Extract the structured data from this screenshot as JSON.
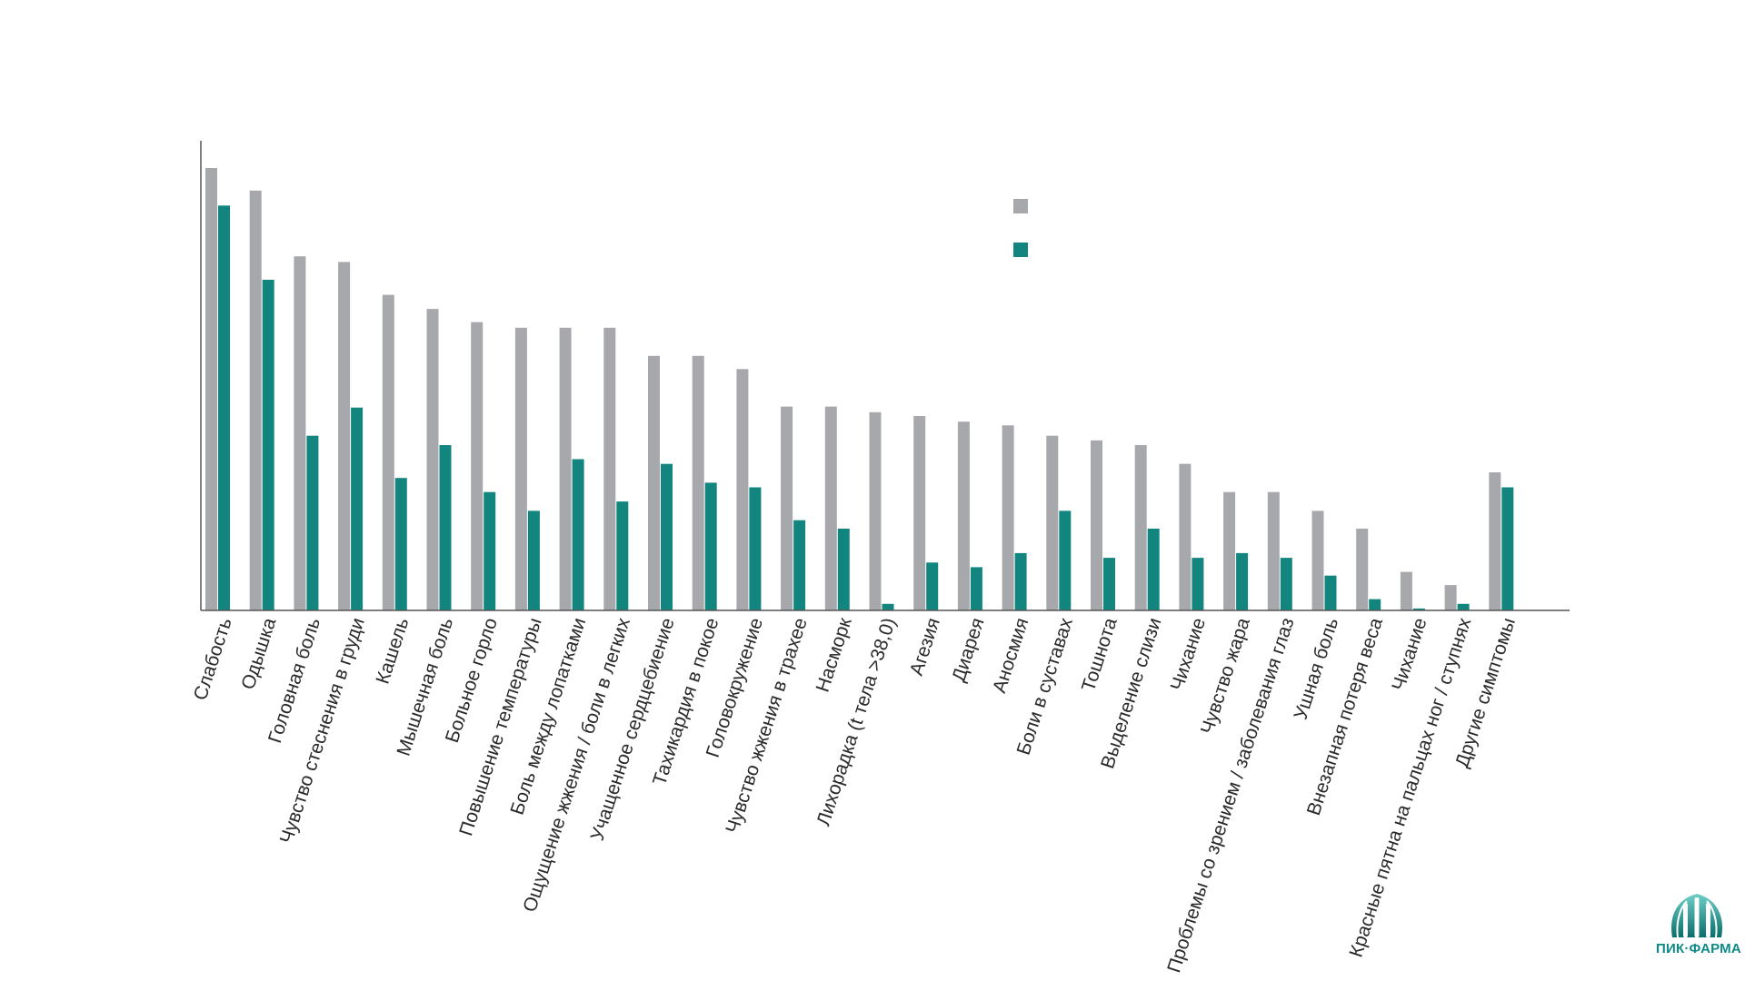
{
  "chart_data": {
    "type": "bar",
    "categories": [
      "Слабость",
      "Одышка",
      "Головная боль",
      "Чувство стеснения в груди",
      "Кашель",
      "Мышечная боль",
      "Больное горло",
      "Повышение температуры",
      "Боль между лопатками",
      "Ощущение жжения / боли в легких",
      "Учащенное сердцебиение",
      "Тахикардия в покое",
      "Головокружение",
      "Чувство жжения в трахее",
      "Насморк",
      "Лихорадка (t тела >38,0)",
      "Агезия",
      "Диарея",
      "Аносмия",
      "Боли в суставах",
      "Тошнота",
      "Выделение слизи",
      "Чихание",
      "Чувство жара",
      "Проблемы со зрением / заболевания глаз",
      "Ушная боль",
      "Внезапная потеря веса",
      "Чихание",
      "Красные пятна на пальцах ног / ступнях",
      "Другие симптомы"
    ],
    "series": [
      {
        "color": "#a7a8ac",
        "values": [
          94.2,
          89.4,
          75.4,
          74.2,
          67.2,
          64.2,
          61.4,
          60.2,
          60.2,
          60.2,
          54.2,
          54.2,
          51.4,
          43.4,
          43.4,
          42.2,
          41.4,
          40.2,
          39.4,
          37.2,
          36.2,
          35.2,
          31.2,
          25.2,
          25.2,
          21.2,
          17.4,
          8.2,
          5.4,
          29.4
        ]
      },
      {
        "color": "#13857f",
        "values": [
          86.2,
          70.4,
          37.2,
          43.2,
          28.2,
          35.2,
          25.2,
          21.2,
          32.2,
          23.2,
          31.2,
          27.2,
          26.2,
          19.2,
          17.4,
          1.4,
          10.2,
          9.2,
          12.2,
          21.2,
          11.2,
          17.4,
          11.2,
          12.2,
          11.2,
          7.4,
          2.4,
          0.4,
          1.4,
          26.2
        ]
      }
    ],
    "legend": {
      "placement": "top-right"
    },
    "grid": false,
    "ylim": [
      0,
      100
    ]
  },
  "logo": {
    "text": "ПИК·ФАРМА",
    "color": "#0d8a87"
  }
}
